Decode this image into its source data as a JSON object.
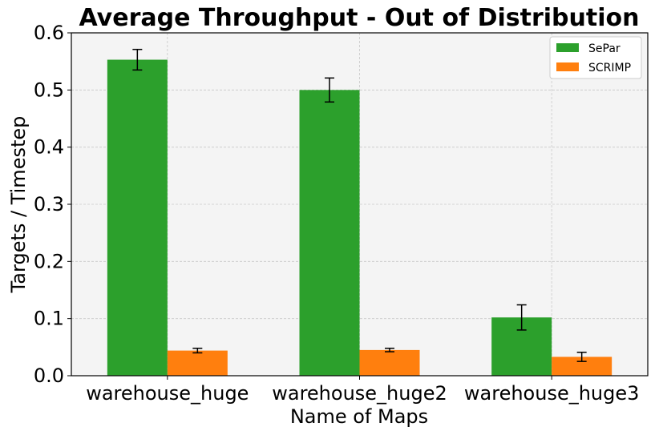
{
  "chart_data": {
    "type": "bar",
    "title": "Average Throughput - Out of Distribution",
    "xlabel": "Name of Maps",
    "ylabel": "Targets / Timestep",
    "categories": [
      "warehouse_huge",
      "warehouse_huge2",
      "warehouse_huge3"
    ],
    "series": [
      {
        "name": "SePar",
        "color": "#2ca02c",
        "values": [
          0.553,
          0.5,
          0.102
        ],
        "errors": [
          0.018,
          0.021,
          0.022
        ]
      },
      {
        "name": "SCRIMP",
        "color": "#ff7f0e",
        "values": [
          0.044,
          0.045,
          0.033
        ],
        "errors": [
          0.004,
          0.003,
          0.008
        ]
      }
    ],
    "ylim": [
      0,
      0.6
    ],
    "yticks": [
      "0.0",
      "0.1",
      "0.2",
      "0.3",
      "0.4",
      "0.5",
      "0.6"
    ],
    "grid": true,
    "legend_position": "top-right",
    "background_color": "#f4f4f4"
  }
}
